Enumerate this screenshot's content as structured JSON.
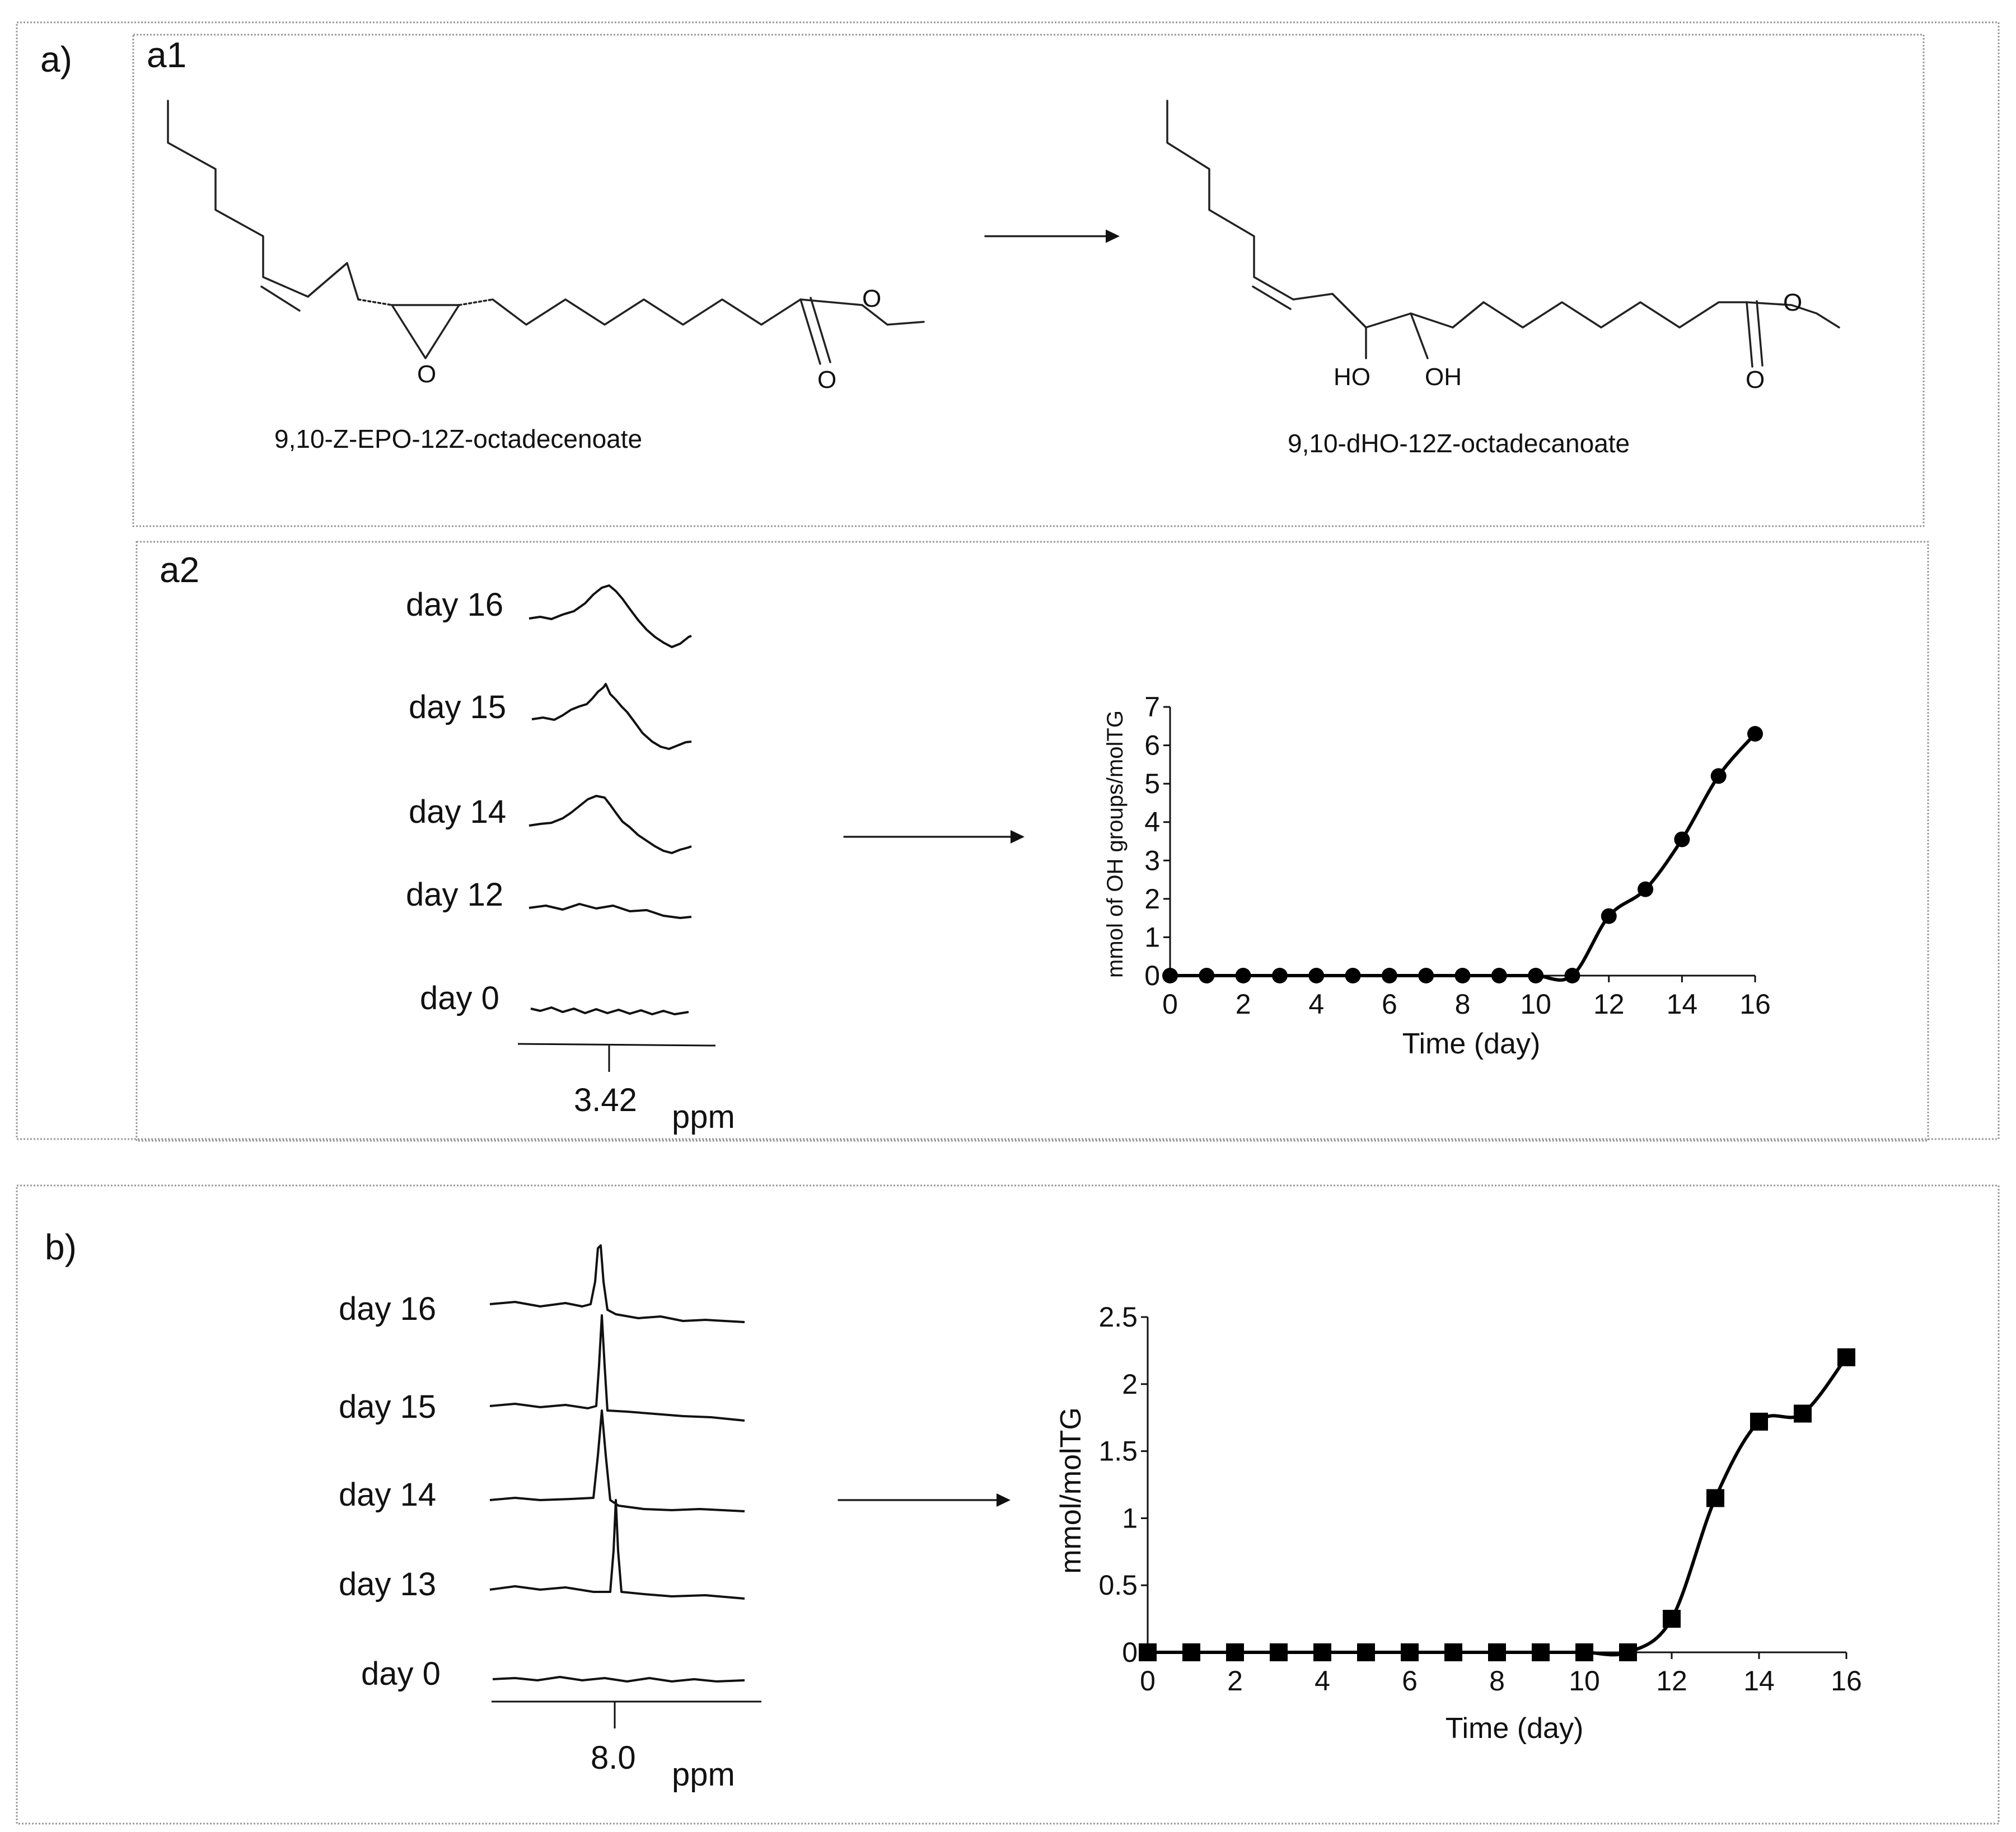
{
  "panel_a_label": "a)",
  "panel_a1_label": "a1",
  "panel_a2_label": "a2",
  "panel_b_label": "b)",
  "molecules": {
    "reactant_name": "9,10-Z-EPO-12Z-octadecenoate",
    "product_name": "9,10-dHO-12Z-octadecanoate",
    "atom_O": "O",
    "atom_HO": "HO",
    "atom_OH": "OH"
  },
  "spectra_a2": {
    "labels": [
      "day 16",
      "day 15",
      "day 14",
      "day 12",
      "day 0"
    ],
    "axis_value": "3.42",
    "axis_unit": "ppm"
  },
  "spectra_b": {
    "labels": [
      "day 16",
      "day 15",
      "day 14",
      "day 13",
      "day 0"
    ],
    "axis_value": "8.0",
    "axis_unit": "ppm"
  },
  "chart_data": [
    {
      "id": "chart_a2",
      "type": "line",
      "marker": "circle",
      "title": "",
      "xlabel": "Time (day)",
      "ylabel": "mmol of OH groups/molTG",
      "xlim": [
        0,
        16
      ],
      "ylim": [
        0,
        7
      ],
      "xticks": [
        0,
        2,
        4,
        6,
        8,
        10,
        12,
        14,
        16
      ],
      "yticks": [
        0,
        1,
        2,
        3,
        4,
        5,
        6,
        7
      ],
      "x": [
        0,
        1,
        2,
        3,
        4,
        5,
        6,
        7,
        8,
        9,
        10,
        11,
        12,
        13,
        14,
        15,
        16
      ],
      "values": [
        0,
        0,
        0,
        0,
        0,
        0,
        0,
        0,
        0,
        0,
        0,
        0,
        1.55,
        2.25,
        3.55,
        5.2,
        6.3
      ]
    },
    {
      "id": "chart_b",
      "type": "line",
      "marker": "square",
      "title": "",
      "xlabel": "Time (day)",
      "ylabel": "mmol/molTG",
      "xlim": [
        0,
        16
      ],
      "ylim": [
        0,
        2.5
      ],
      "xticks": [
        0,
        2,
        4,
        6,
        8,
        10,
        12,
        14,
        16
      ],
      "yticks": [
        "0",
        "0.5",
        "1",
        "1.5",
        "2",
        "2.5"
      ],
      "x": [
        0,
        1,
        2,
        3,
        4,
        5,
        6,
        7,
        8,
        9,
        10,
        11,
        12,
        13,
        14,
        15,
        16
      ],
      "values": [
        0,
        0,
        0,
        0,
        0,
        0,
        0,
        0,
        0,
        0,
        0,
        0,
        0.25,
        1.15,
        1.72,
        1.78,
        2.2
      ]
    }
  ]
}
